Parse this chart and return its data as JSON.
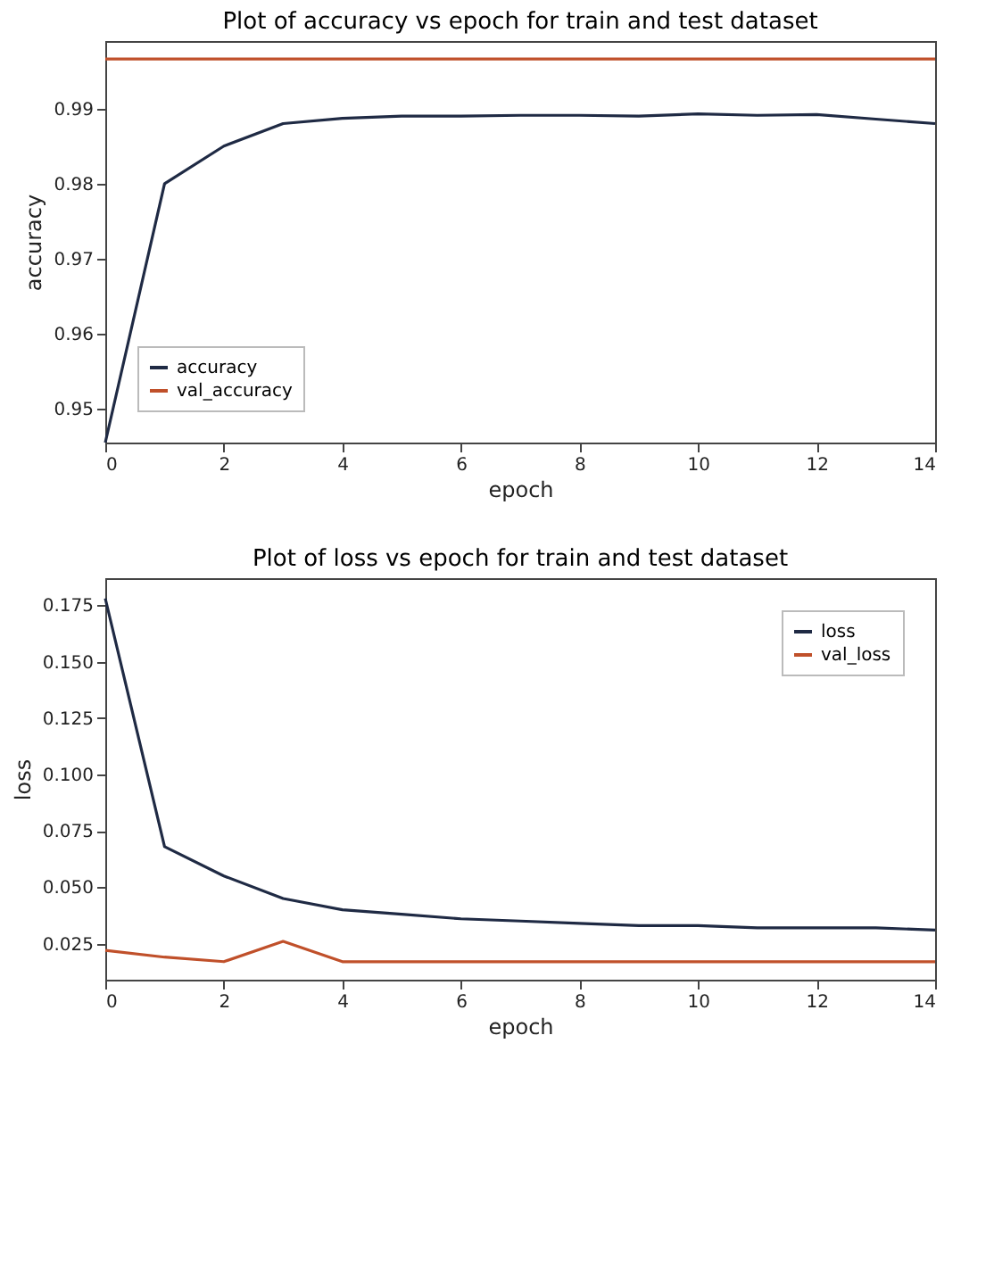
{
  "chart_data": [
    {
      "type": "line",
      "title": "Plot of accuracy vs epoch for train and test dataset",
      "xlabel": "epoch",
      "ylabel": "accuracy",
      "x": [
        0,
        1,
        2,
        3,
        4,
        5,
        6,
        7,
        8,
        9,
        10,
        11,
        12,
        13,
        14
      ],
      "series": [
        {
          "name": "accuracy",
          "color": "#1f2a44",
          "values": [
            0.9455,
            0.98,
            0.985,
            0.988,
            0.9887,
            0.989,
            0.989,
            0.9891,
            0.9891,
            0.989,
            0.9893,
            0.9891,
            0.9892,
            0.9886,
            0.988
          ]
        },
        {
          "name": "val_accuracy",
          "color": "#c0502a",
          "values": [
            0.9966,
            0.9966,
            0.9966,
            0.9966,
            0.9966,
            0.9966,
            0.9966,
            0.9966,
            0.9966,
            0.9966,
            0.9966,
            0.9966,
            0.9966,
            0.9966,
            0.9966
          ]
        }
      ],
      "xlim": [
        0,
        14
      ],
      "xticks": [
        0,
        2,
        4,
        6,
        8,
        10,
        12,
        14
      ],
      "ylim": [
        0.9455,
        0.999
      ],
      "yticks": [
        0.95,
        0.96,
        0.97,
        0.98,
        0.99
      ],
      "grid": false,
      "legend": "bottom left",
      "marker": "none",
      "line_style": "solid"
    },
    {
      "type": "line",
      "title": "Plot of loss vs epoch for train and test dataset",
      "xlabel": "epoch",
      "ylabel": "loss",
      "x": [
        0,
        1,
        2,
        3,
        4,
        5,
        6,
        7,
        8,
        9,
        10,
        11,
        12,
        13,
        14
      ],
      "series": [
        {
          "name": "loss",
          "color": "#1f2a44",
          "values": [
            0.178,
            0.068,
            0.055,
            0.045,
            0.04,
            0.038,
            0.036,
            0.035,
            0.034,
            0.033,
            0.033,
            0.032,
            0.032,
            0.032,
            0.031
          ]
        },
        {
          "name": "val_loss",
          "color": "#c0502a",
          "values": [
            0.022,
            0.019,
            0.017,
            0.026,
            0.017,
            0.017,
            0.017,
            0.017,
            0.017,
            0.017,
            0.017,
            0.017,
            0.017,
            0.017,
            0.017
          ]
        }
      ],
      "xlim": [
        0,
        14
      ],
      "xticks": [
        0,
        2,
        4,
        6,
        8,
        10,
        12,
        14
      ],
      "ylim": [
        0.009,
        0.187
      ],
      "yticks": [
        0.025,
        {
          "value": 0.05,
          "label": "0.050"
        },
        0.075,
        {
          "value": 0.1,
          "label": "0.100"
        },
        0.125,
        {
          "value": 0.15,
          "label": "0.150"
        },
        0.175
      ],
      "grid": false,
      "legend": "top right",
      "marker": "none",
      "line_style": "solid"
    }
  ]
}
